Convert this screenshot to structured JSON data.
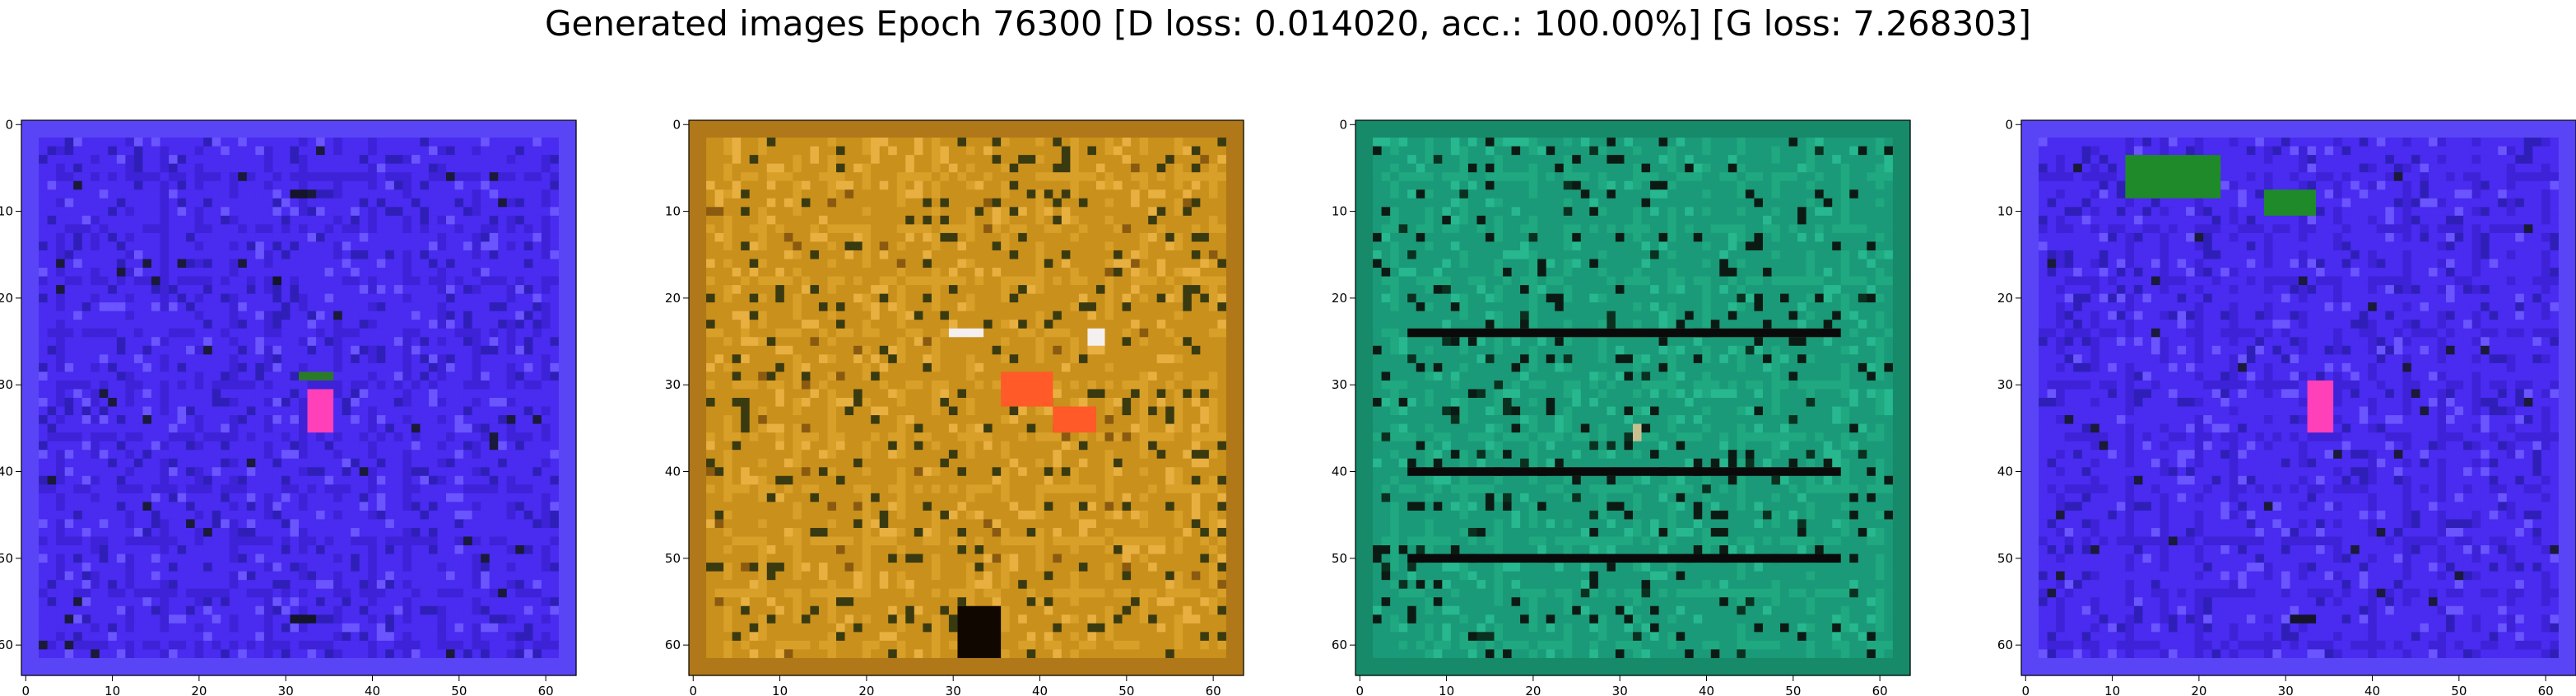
{
  "figure": {
    "title": "Generated images Epoch 76300 [D loss: 0.014020, acc.: 100.00%] [G loss: 7.268303]"
  },
  "chart_data": [
    {
      "type": "heatmap",
      "panel": "generated-image-1",
      "xlim": [
        -0.5,
        63.5
      ],
      "ylim": [
        63.5,
        -0.5
      ],
      "xticks": [
        0,
        10,
        20,
        30,
        40,
        50,
        60
      ],
      "yticks": [
        0,
        10,
        20,
        30,
        40,
        50,
        60
      ],
      "base_color": "#4a2bf0",
      "palette": [
        "#4a2bf0",
        "#3d22d8",
        "#5a45f6",
        "#2f1fb8",
        "#1a1a3a",
        "#6a55ff",
        "#ff3fc0",
        "#2e8a2e"
      ],
      "features": [
        {
          "kind": "blob",
          "color": "#ff40b8",
          "row": 31,
          "col": 33,
          "h": 5,
          "w": 3
        },
        {
          "kind": "blob",
          "color": "#2a7a2a",
          "row": 29,
          "col": 32,
          "h": 1,
          "w": 4
        },
        {
          "kind": "blob",
          "color": "#14142a",
          "row": 8,
          "col": 31,
          "h": 1,
          "w": 2
        },
        {
          "kind": "blob",
          "color": "#14142a",
          "row": 57,
          "col": 31,
          "h": 1,
          "w": 3
        },
        {
          "kind": "blob",
          "color": "#14142a",
          "row": 18,
          "col": 29,
          "h": 1,
          "w": 1
        }
      ]
    },
    {
      "type": "heatmap",
      "panel": "generated-image-2",
      "xlim": [
        -0.5,
        63.5
      ],
      "ylim": [
        63.5,
        -0.5
      ],
      "xticks": [
        0,
        10,
        20,
        30,
        40,
        50,
        60
      ],
      "yticks": [
        0,
        10,
        20,
        30,
        40,
        50,
        60
      ],
      "base_color": "#c9901c",
      "palette": [
        "#c9901c",
        "#d8a028",
        "#b07818",
        "#e8b040",
        "#8a5a10",
        "#3a3a10",
        "#ff6020",
        "#f0f0f0"
      ],
      "features": [
        {
          "kind": "blob",
          "color": "#ff5a28",
          "row": 29,
          "col": 36,
          "h": 4,
          "w": 6
        },
        {
          "kind": "blob",
          "color": "#ff5a28",
          "row": 33,
          "col": 42,
          "h": 3,
          "w": 5
        },
        {
          "kind": "blob",
          "color": "#100800",
          "row": 56,
          "col": 31,
          "h": 6,
          "w": 5
        },
        {
          "kind": "blob",
          "color": "#f5f0f0",
          "row": 24,
          "col": 30,
          "h": 1,
          "w": 4
        },
        {
          "kind": "blob",
          "color": "#f5f0f0",
          "row": 24,
          "col": 46,
          "h": 2,
          "w": 2
        }
      ]
    },
    {
      "type": "heatmap",
      "panel": "generated-image-3",
      "xlim": [
        -0.5,
        63.5
      ],
      "ylim": [
        63.5,
        -0.5
      ],
      "xticks": [
        0,
        10,
        20,
        30,
        40,
        50,
        60
      ],
      "yticks": [
        0,
        10,
        20,
        30,
        40,
        50,
        60
      ],
      "base_color": "#1a9a78",
      "palette": [
        "#1a9a78",
        "#20a880",
        "#178a6a",
        "#28b890",
        "#0a3020",
        "#0c1a14",
        "#20c0a0",
        "#109060"
      ],
      "features": [
        {
          "kind": "blob",
          "color": "#0a0a0a",
          "row": 24,
          "col": 6,
          "h": 1,
          "w": 50
        },
        {
          "kind": "blob",
          "color": "#0a0a0a",
          "row": 40,
          "col": 6,
          "h": 1,
          "w": 50
        },
        {
          "kind": "blob",
          "color": "#0a0a0a",
          "row": 50,
          "col": 6,
          "h": 1,
          "w": 50
        },
        {
          "kind": "blob",
          "color": "#c8c090",
          "row": 35,
          "col": 32,
          "h": 2,
          "w": 1
        }
      ]
    },
    {
      "type": "heatmap",
      "panel": "generated-image-4",
      "xlim": [
        -0.5,
        63.5
      ],
      "ylim": [
        63.5,
        -0.5
      ],
      "xticks": [
        0,
        10,
        20,
        30,
        40,
        50,
        60
      ],
      "yticks": [
        0,
        10,
        20,
        30,
        40,
        50,
        60
      ],
      "base_color": "#4a2bf0",
      "palette": [
        "#4a2bf0",
        "#3d22d8",
        "#5a45f6",
        "#2f1fb8",
        "#1a1a3a",
        "#6a55ff",
        "#ff3fc0",
        "#2e8a2e"
      ],
      "features": [
        {
          "kind": "blob",
          "color": "#1e8a2a",
          "row": 4,
          "col": 12,
          "h": 5,
          "w": 11
        },
        {
          "kind": "blob",
          "color": "#1e8a2a",
          "row": 8,
          "col": 28,
          "h": 3,
          "w": 6
        },
        {
          "kind": "blob",
          "color": "#ff40b8",
          "row": 30,
          "col": 33,
          "h": 6,
          "w": 3
        },
        {
          "kind": "blob",
          "color": "#14142a",
          "row": 57,
          "col": 31,
          "h": 1,
          "w": 3
        }
      ]
    }
  ]
}
